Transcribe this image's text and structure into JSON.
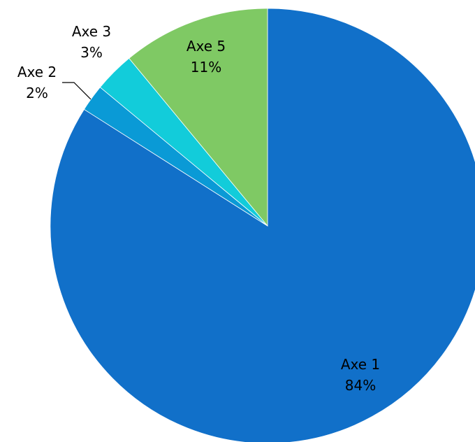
{
  "chart_data": {
    "type": "pie",
    "title": "",
    "start_angle_deg": 0,
    "direction": "clockwise",
    "slices": [
      {
        "name": "Axe 1",
        "value": 84,
        "label": "84%",
        "color": "#1170C9"
      },
      {
        "name": "Axe 2",
        "value": 2,
        "label": "2%",
        "color": "#0A9AD6"
      },
      {
        "name": "Axe 3",
        "value": 3,
        "label": "3%",
        "color": "#12CCDA"
      },
      {
        "name": "Axe 5",
        "value": 11,
        "label": "11%",
        "color": "#7FC964"
      }
    ],
    "legend": "none",
    "data_labels": "category-and-percent"
  }
}
